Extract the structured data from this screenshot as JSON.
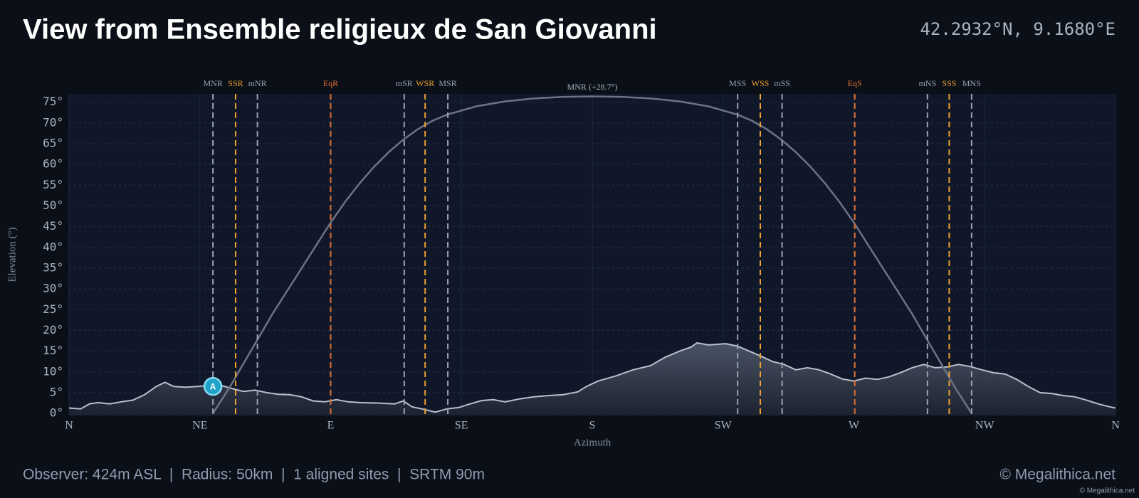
{
  "chart_data": {
    "type": "horizon",
    "title": "View from Ensemble religieux de San Giovanni",
    "coordinates": "42.2932°N, 9.1680°E",
    "xlabel": "Azimuth",
    "ylabel": "Elevation (°)",
    "xlim": [
      0,
      360
    ],
    "ylim": [
      -0.5,
      77
    ],
    "xticks": [
      {
        "value": 0,
        "label": "N"
      },
      {
        "value": 45,
        "label": "NE"
      },
      {
        "value": 90,
        "label": "E"
      },
      {
        "value": 135,
        "label": "SE"
      },
      {
        "value": 180,
        "label": "S"
      },
      {
        "value": 225,
        "label": "SW"
      },
      {
        "value": 270,
        "label": "W"
      },
      {
        "value": 315,
        "label": "NW"
      },
      {
        "value": 360,
        "label": "N"
      }
    ],
    "yticks": [
      {
        "value": 0,
        "label": "0°"
      },
      {
        "value": 5,
        "label": "5°"
      },
      {
        "value": 10,
        "label": "10°"
      },
      {
        "value": 15,
        "label": "15°"
      },
      {
        "value": 20,
        "label": "20°"
      },
      {
        "value": 25,
        "label": "25°"
      },
      {
        "value": 30,
        "label": "30°"
      },
      {
        "value": 35,
        "label": "35°"
      },
      {
        "value": 40,
        "label": "40°"
      },
      {
        "value": 45,
        "label": "45°"
      },
      {
        "value": 50,
        "label": "50°"
      },
      {
        "value": 55,
        "label": "55°"
      },
      {
        "value": 60,
        "label": "60°"
      },
      {
        "value": 65,
        "label": "65°"
      },
      {
        "value": 70,
        "label": "70°"
      },
      {
        "value": 75,
        "label": "75°"
      }
    ],
    "grid": true,
    "horizon": {
      "color": "#b8c0cc",
      "x": [
        0,
        4,
        7,
        10,
        14,
        18,
        22,
        26,
        30,
        33,
        36,
        40,
        44,
        48,
        52,
        56,
        60,
        64,
        68,
        72,
        76,
        80,
        84,
        88,
        92,
        96,
        100,
        106,
        112,
        115,
        118,
        122,
        126,
        130,
        134,
        138,
        142,
        146,
        150,
        155,
        160,
        165,
        170,
        175,
        178,
        182,
        188,
        194,
        200,
        205,
        210,
        214,
        216,
        220,
        226,
        230,
        234,
        238,
        242,
        246,
        250,
        254,
        258,
        262,
        266,
        270,
        274,
        278,
        282,
        286,
        290,
        294,
        298,
        302,
        306,
        310,
        314,
        318,
        322,
        326,
        330,
        334,
        338,
        342,
        346,
        350,
        354,
        358,
        360
      ],
      "values": [
        1.3,
        1.1,
        2.3,
        2.6,
        2.3,
        2.8,
        3.2,
        4.5,
        6.5,
        7.5,
        6.5,
        6.3,
        6.5,
        6.7,
        6.8,
        6,
        5.3,
        5.6,
        5,
        4.6,
        4.5,
        4,
        3,
        2.8,
        3.3,
        2.8,
        2.6,
        2.5,
        2.3,
        3,
        1.6,
        1,
        0.3,
        1.1,
        1.4,
        2.3,
        3.1,
        3.3,
        2.8,
        3.5,
        4,
        4.3,
        4.5,
        5.2,
        6.5,
        7.8,
        9,
        10.5,
        11.5,
        13.5,
        15,
        16,
        17,
        16.5,
        16.8,
        16.2,
        15,
        13.8,
        12.5,
        11.8,
        10.5,
        11,
        10.5,
        9.5,
        8.3,
        7.8,
        8.5,
        8.2,
        8.8,
        9.8,
        11,
        11.8,
        11,
        11.2,
        11.8,
        11.3,
        10.5,
        9.8,
        9.5,
        8.2,
        6.5,
        5,
        4.8,
        4.3,
        4,
        3.2,
        2.3,
        1.6,
        1.3
      ]
    },
    "path": {
      "name": "MNR (+28.7°)",
      "color": "#6b7384",
      "x": [
        49.5,
        55,
        60,
        65,
        70,
        75,
        80,
        85,
        90,
        95,
        100,
        105,
        110,
        115,
        120,
        125,
        130,
        140,
        150,
        160,
        170,
        180,
        190,
        200,
        210,
        220,
        230,
        235,
        240,
        245,
        250,
        255,
        260,
        265,
        270,
        275,
        280,
        285,
        290,
        295,
        300,
        305,
        310.5
      ],
      "values": [
        0,
        6,
        12,
        18,
        24,
        29.5,
        35,
        40.5,
        46,
        51,
        55.5,
        59.5,
        63,
        66,
        68.5,
        70.5,
        72,
        74,
        75.2,
        75.9,
        76.3,
        76.4,
        76.3,
        75.9,
        75.2,
        74,
        72,
        70.5,
        68.5,
        66,
        63,
        59.5,
        55.5,
        51,
        46,
        40.5,
        35,
        29.5,
        24,
        18,
        12,
        6,
        0
      ]
    },
    "alignments": [
      {
        "label": "MNR",
        "x": 49.5,
        "color": "#9aa3b2"
      },
      {
        "label": "SSR",
        "x": 57.3,
        "color": "#f0a030"
      },
      {
        "label": "mNR",
        "x": 64.8,
        "color": "#9aa3b2"
      },
      {
        "label": "EqR",
        "x": 90,
        "color": "#e07030"
      },
      {
        "label": "mSR",
        "x": 115.3,
        "color": "#9aa3b2"
      },
      {
        "label": "WSR",
        "x": 122.5,
        "color": "#f0a030"
      },
      {
        "label": "MSR",
        "x": 130.3,
        "color": "#9aa3b2"
      },
      {
        "label": "MSS",
        "x": 230,
        "color": "#9aa3b2"
      },
      {
        "label": "WSS",
        "x": 237.8,
        "color": "#f0a030"
      },
      {
        "label": "mSS",
        "x": 245.3,
        "color": "#9aa3b2"
      },
      {
        "label": "EqS",
        "x": 270.3,
        "color": "#e07030"
      },
      {
        "label": "mNS",
        "x": 295.3,
        "color": "#9aa3b2"
      },
      {
        "label": "SSS",
        "x": 302.8,
        "color": "#f0a030"
      },
      {
        "label": "MNS",
        "x": 310.5,
        "color": "#9aa3b2"
      }
    ],
    "sites": [
      {
        "label": "A",
        "x": 49.5,
        "y": 6.5,
        "color": "#1fa3c8"
      }
    ]
  },
  "footer": {
    "info": "Observer: 424m ASL  |  Radius: 50km  |  1 aligned sites  |  SRTM 90m",
    "brand": "© Megalithica.net",
    "credit": "© Megalithica.net"
  }
}
